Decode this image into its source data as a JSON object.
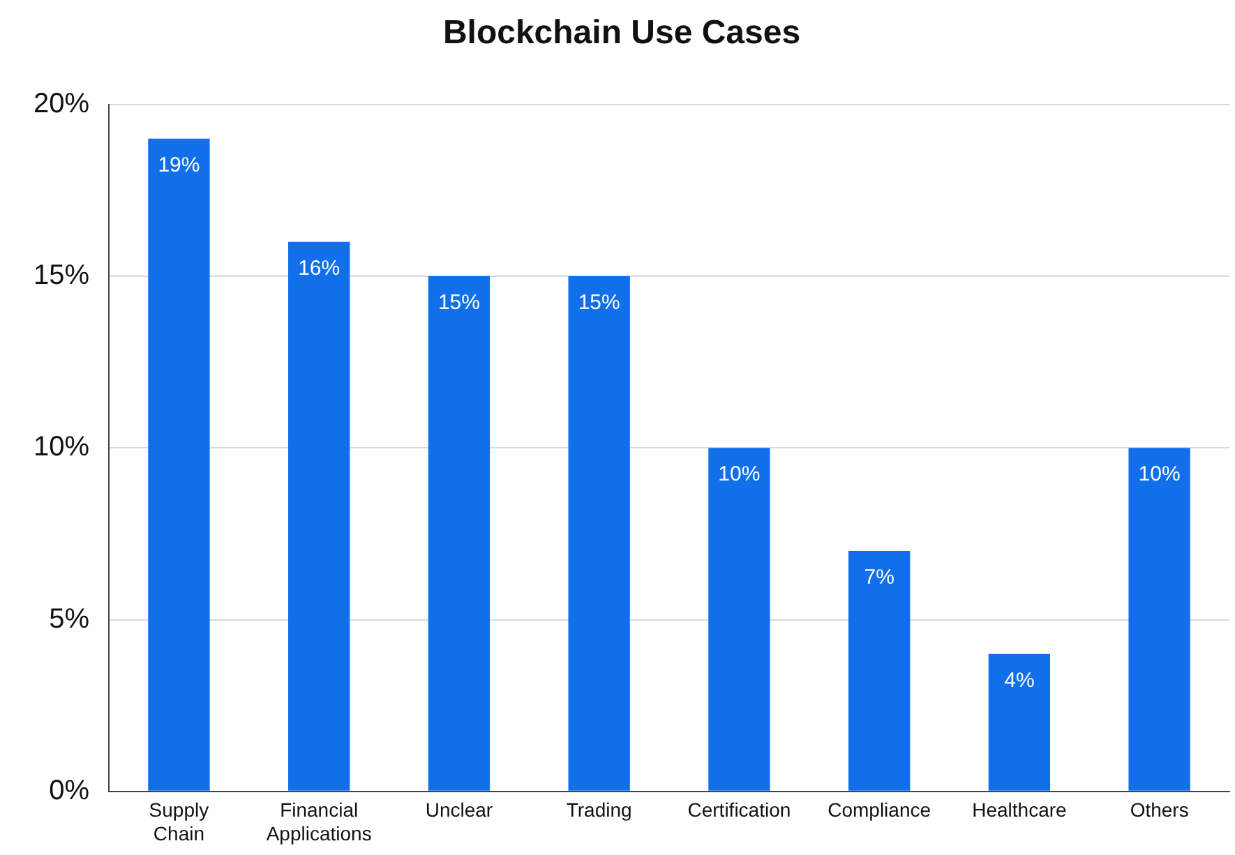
{
  "chart_data": {
    "type": "bar",
    "title": "Blockchain Use Cases",
    "categories": [
      "Supply Chain",
      "Financial Applications",
      "Unclear",
      "Trading",
      "Certification",
      "Compliance",
      "Healthcare",
      "Others"
    ],
    "values": [
      19,
      16,
      15,
      15,
      10,
      7,
      4,
      10
    ],
    "value_labels": [
      "19%",
      "16%",
      "15%",
      "15%",
      "10%",
      "7%",
      "4%",
      "10%"
    ],
    "color": "#1170e9",
    "ylim": [
      0,
      20
    ],
    "yticks": [
      {
        "value": 0,
        "label": "0%"
      },
      {
        "value": 5,
        "label": "5%"
      },
      {
        "value": 10,
        "label": "10%"
      },
      {
        "value": 15,
        "label": "15%"
      },
      {
        "value": 20,
        "label": "20%"
      }
    ],
    "grid": "y"
  }
}
